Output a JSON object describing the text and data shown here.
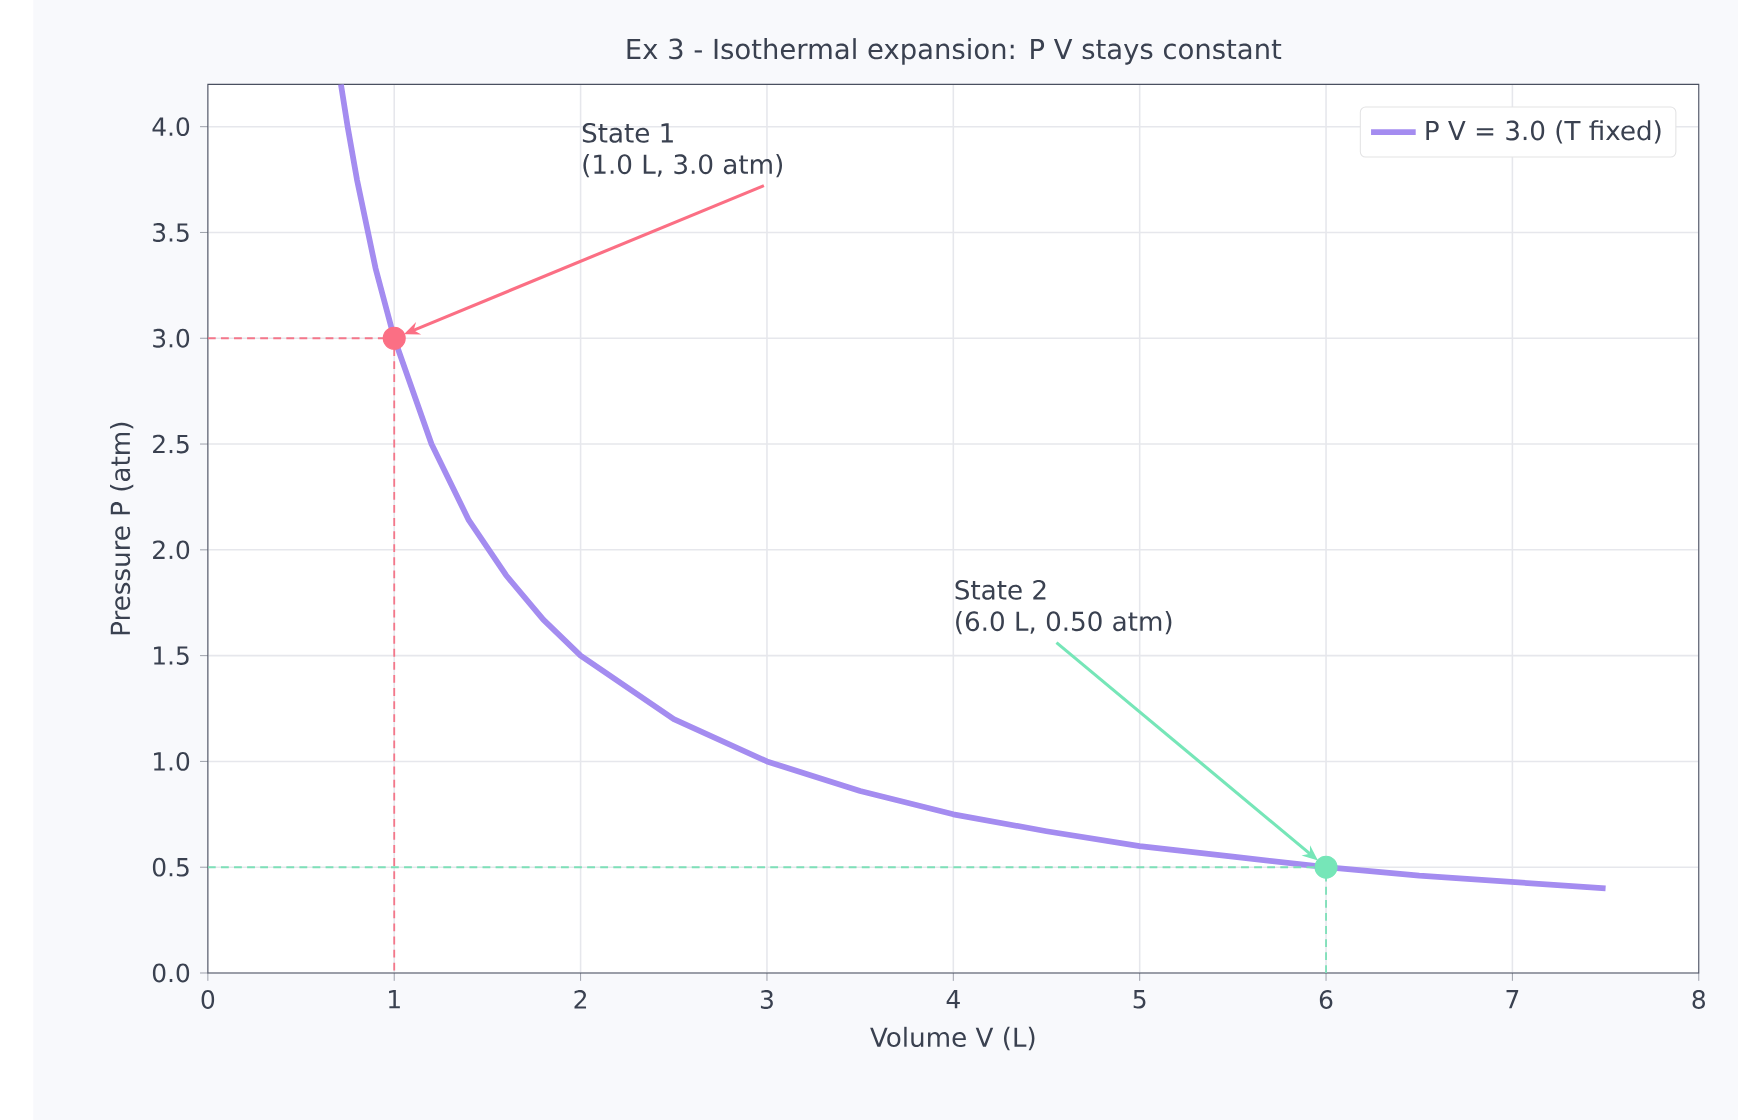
{
  "chart_data": {
    "type": "line",
    "title": "Ex 3 - Isothermal expansion: P V stays constant",
    "xlabel": "Volume  V  (L)",
    "ylabel": "Pressure  P  (atm)",
    "xlim": [
      0,
      8
    ],
    "ylim": [
      0,
      4.2
    ],
    "xticks": [
      0,
      1,
      2,
      3,
      4,
      5,
      6,
      7,
      8
    ],
    "yticks": [
      {
        "value": 0,
        "label": "0.0"
      },
      {
        "value": 0.5,
        "label": "0.5"
      },
      {
        "value": 1,
        "label": "1.0"
      },
      {
        "value": 1.5,
        "label": "1.5"
      },
      {
        "value": 2,
        "label": "2.0"
      },
      {
        "value": 2.5,
        "label": "2.5"
      },
      {
        "value": 3,
        "label": "3.0"
      },
      {
        "value": 3.5,
        "label": "3.5"
      },
      {
        "value": 4,
        "label": "4.0"
      }
    ],
    "grid": true,
    "legend": "top right",
    "series": [
      {
        "name": "P V = 3.0  (T fixed)",
        "color": "#a48cf0",
        "x": [
          0.714,
          0.75,
          0.8,
          0.9,
          1,
          1.2,
          1.4,
          1.6,
          1.8,
          2,
          2.5,
          3,
          3.5,
          4,
          4.5,
          5,
          5.5,
          6,
          6.5,
          7,
          7.5
        ],
        "values": [
          4.2,
          4.0,
          3.75,
          3.33,
          3.0,
          2.5,
          2.14,
          1.88,
          1.67,
          1.5,
          1.2,
          1.0,
          0.86,
          0.75,
          0.67,
          0.6,
          0.55,
          0.5,
          0.46,
          0.43,
          0.4
        ]
      },
      {
        "type": "line",
        "line_style": "dashed",
        "color": "#f4778a",
        "x": [
          0,
          1,
          1
        ],
        "values": [
          3,
          3,
          0
        ]
      },
      {
        "type": "line",
        "line_style": "dashed",
        "color": "#7ee0b8",
        "x": [
          0,
          6,
          6
        ],
        "values": [
          0.5,
          0.5,
          0
        ]
      },
      {
        "type": "scatter",
        "marker": "circle",
        "color": "#fb6f84",
        "x": [
          1
        ],
        "values": [
          3
        ]
      },
      {
        "type": "scatter",
        "marker": "circle",
        "color": "#76e6b8",
        "x": [
          6
        ],
        "values": [
          0.5
        ]
      }
    ],
    "annotations": [
      "State 1",
      "(1.0 L, 3.0 atm)",
      "State 2",
      "(6.0 L, 0.50 atm)"
    ]
  }
}
